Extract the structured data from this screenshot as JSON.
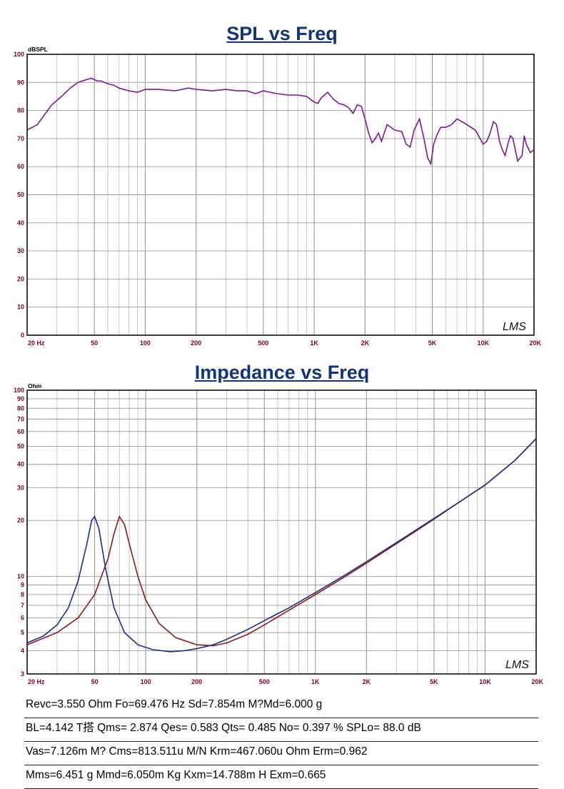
{
  "spl_title": "SPL vs Freq",
  "impedance_title": "Impedance vs Freq",
  "spl_unit": "dBSPL",
  "impedance_unit": "Ohm",
  "logo_text": "LMS",
  "colors": {
    "title": "#12357a",
    "spl_curve": "#7a1a8c",
    "impedance_blue": "#1c2a8a",
    "impedance_red": "#8a1a1a",
    "grid": "#b8b8b8",
    "axis_text": "#7a0033"
  },
  "x_tick_labels": [
    "20 Hz",
    "50",
    "100",
    "200",
    "500",
    "1K",
    "2K",
    "5K",
    "10K",
    "20K"
  ],
  "parameters": [
    "Revc=3.550 Ohm  Fo=69.476 Hz  Sd=7.854m M?Md=6.000 g",
    "BL=4.142 T搭  Qms= 2.874  Qes= 0.583  Qts= 0.485  No= 0.397 %  SPLo= 88.0 dB",
    "Vas=7.126m M? Cms=813.511u M/N  Krm=467.060u Ohm  Erm=0.962",
    "Mms=6.451 g  Mmd=6.050m Kg  Kxm=14.788m H  Exm=0.665"
  ],
  "chart_data": [
    {
      "type": "line",
      "title": "SPL vs Freq",
      "ylabel": "dBSPL",
      "xscale": "log",
      "xlim": [
        20,
        20000
      ],
      "ylim": [
        0,
        100
      ],
      "grid": true,
      "x_ticks": [
        20,
        50,
        100,
        200,
        500,
        1000,
        2000,
        5000,
        10000,
        20000
      ],
      "y_ticks": [
        0,
        10,
        20,
        30,
        40,
        50,
        60,
        70,
        80,
        90,
        100
      ],
      "series": [
        {
          "color": "#7a1a8c",
          "x": [
            20,
            23,
            25,
            28,
            32,
            36,
            40,
            45,
            48,
            52,
            55,
            60,
            65,
            70,
            80,
            90,
            100,
            120,
            150,
            180,
            200,
            250,
            300,
            350,
            400,
            450,
            500,
            600,
            700,
            800,
            900,
            1000,
            1050,
            1100,
            1200,
            1300,
            1400,
            1500,
            1600,
            1700,
            1800,
            1900,
            2000,
            2100,
            2200,
            2300,
            2400,
            2500,
            2700,
            3000,
            3300,
            3500,
            3700,
            3900,
            4200,
            4500,
            4700,
            4900,
            5100,
            5300,
            5600,
            6000,
            6500,
            7000,
            7500,
            8000,
            9000,
            10000,
            10500,
            11000,
            11500,
            12000,
            12500,
            13000,
            13500,
            14000,
            14500,
            15000,
            16000,
            17000,
            17500,
            18000,
            19000,
            20000
          ],
          "y": [
            73,
            75,
            78,
            82,
            85,
            88,
            90,
            91,
            91.5,
            90.5,
            90.5,
            89.5,
            89,
            88,
            87,
            86.5,
            87.5,
            87.5,
            87,
            88,
            87.5,
            87,
            87.5,
            87,
            87,
            86,
            87,
            86,
            85.5,
            85.5,
            85,
            83,
            82.5,
            84.5,
            86.5,
            84,
            82.5,
            82,
            81,
            79,
            82,
            81.5,
            77,
            72,
            68.5,
            70,
            72,
            69,
            75,
            73,
            72.5,
            68,
            67,
            73,
            77,
            69,
            63,
            61,
            68,
            71,
            74,
            74,
            75,
            77,
            76,
            75,
            73,
            68,
            69,
            72,
            76,
            75,
            69,
            66,
            64,
            68,
            71,
            70,
            62,
            64,
            71,
            68,
            65,
            66
          ]
        }
      ]
    },
    {
      "type": "line",
      "title": "Impedance vs Freq",
      "ylabel": "Ohm",
      "xscale": "log",
      "yscale": "log",
      "xlim": [
        20,
        20000
      ],
      "ylim": [
        3,
        100
      ],
      "grid": true,
      "x_ticks": [
        20,
        50,
        100,
        200,
        500,
        1000,
        2000,
        5000,
        10000,
        20000
      ],
      "y_ticks": [
        3,
        4,
        5,
        6,
        7,
        8,
        9,
        10,
        20,
        30,
        40,
        50,
        60,
        70,
        80,
        90,
        100
      ],
      "series": [
        {
          "color": "#1c2a8a",
          "x": [
            20,
            25,
            30,
            35,
            40,
            45,
            48,
            50,
            53,
            58,
            65,
            75,
            90,
            110,
            140,
            170,
            200,
            250,
            300,
            400,
            500,
            700,
            1000,
            1500,
            2000,
            3000,
            5000,
            7000,
            10000,
            15000,
            20000
          ],
          "y": [
            4.4,
            4.8,
            5.5,
            6.8,
            9.5,
            15,
            20,
            21,
            18,
            11,
            6.8,
            5,
            4.3,
            4.05,
            3.95,
            4.0,
            4.1,
            4.3,
            4.6,
            5.2,
            5.8,
            6.8,
            8.2,
            10.2,
            12,
            15.2,
            20.5,
            25,
            31,
            42,
            55
          ]
        },
        {
          "color": "#8a1a1a",
          "x": [
            20,
            30,
            40,
            50,
            60,
            65,
            70,
            75,
            80,
            90,
            100,
            120,
            150,
            200,
            250,
            300,
            400,
            500,
            700,
            1000,
            1500,
            2000,
            3000,
            5000,
            7000,
            10000,
            15000,
            20000
          ],
          "y": [
            4.3,
            5.0,
            6.0,
            8.0,
            12.5,
            17,
            21,
            19,
            15,
            10,
            7.5,
            5.6,
            4.7,
            4.3,
            4.25,
            4.4,
            4.9,
            5.5,
            6.6,
            8,
            10,
            11.8,
            15,
            20.3,
            25,
            31,
            42,
            55
          ]
        }
      ]
    }
  ]
}
